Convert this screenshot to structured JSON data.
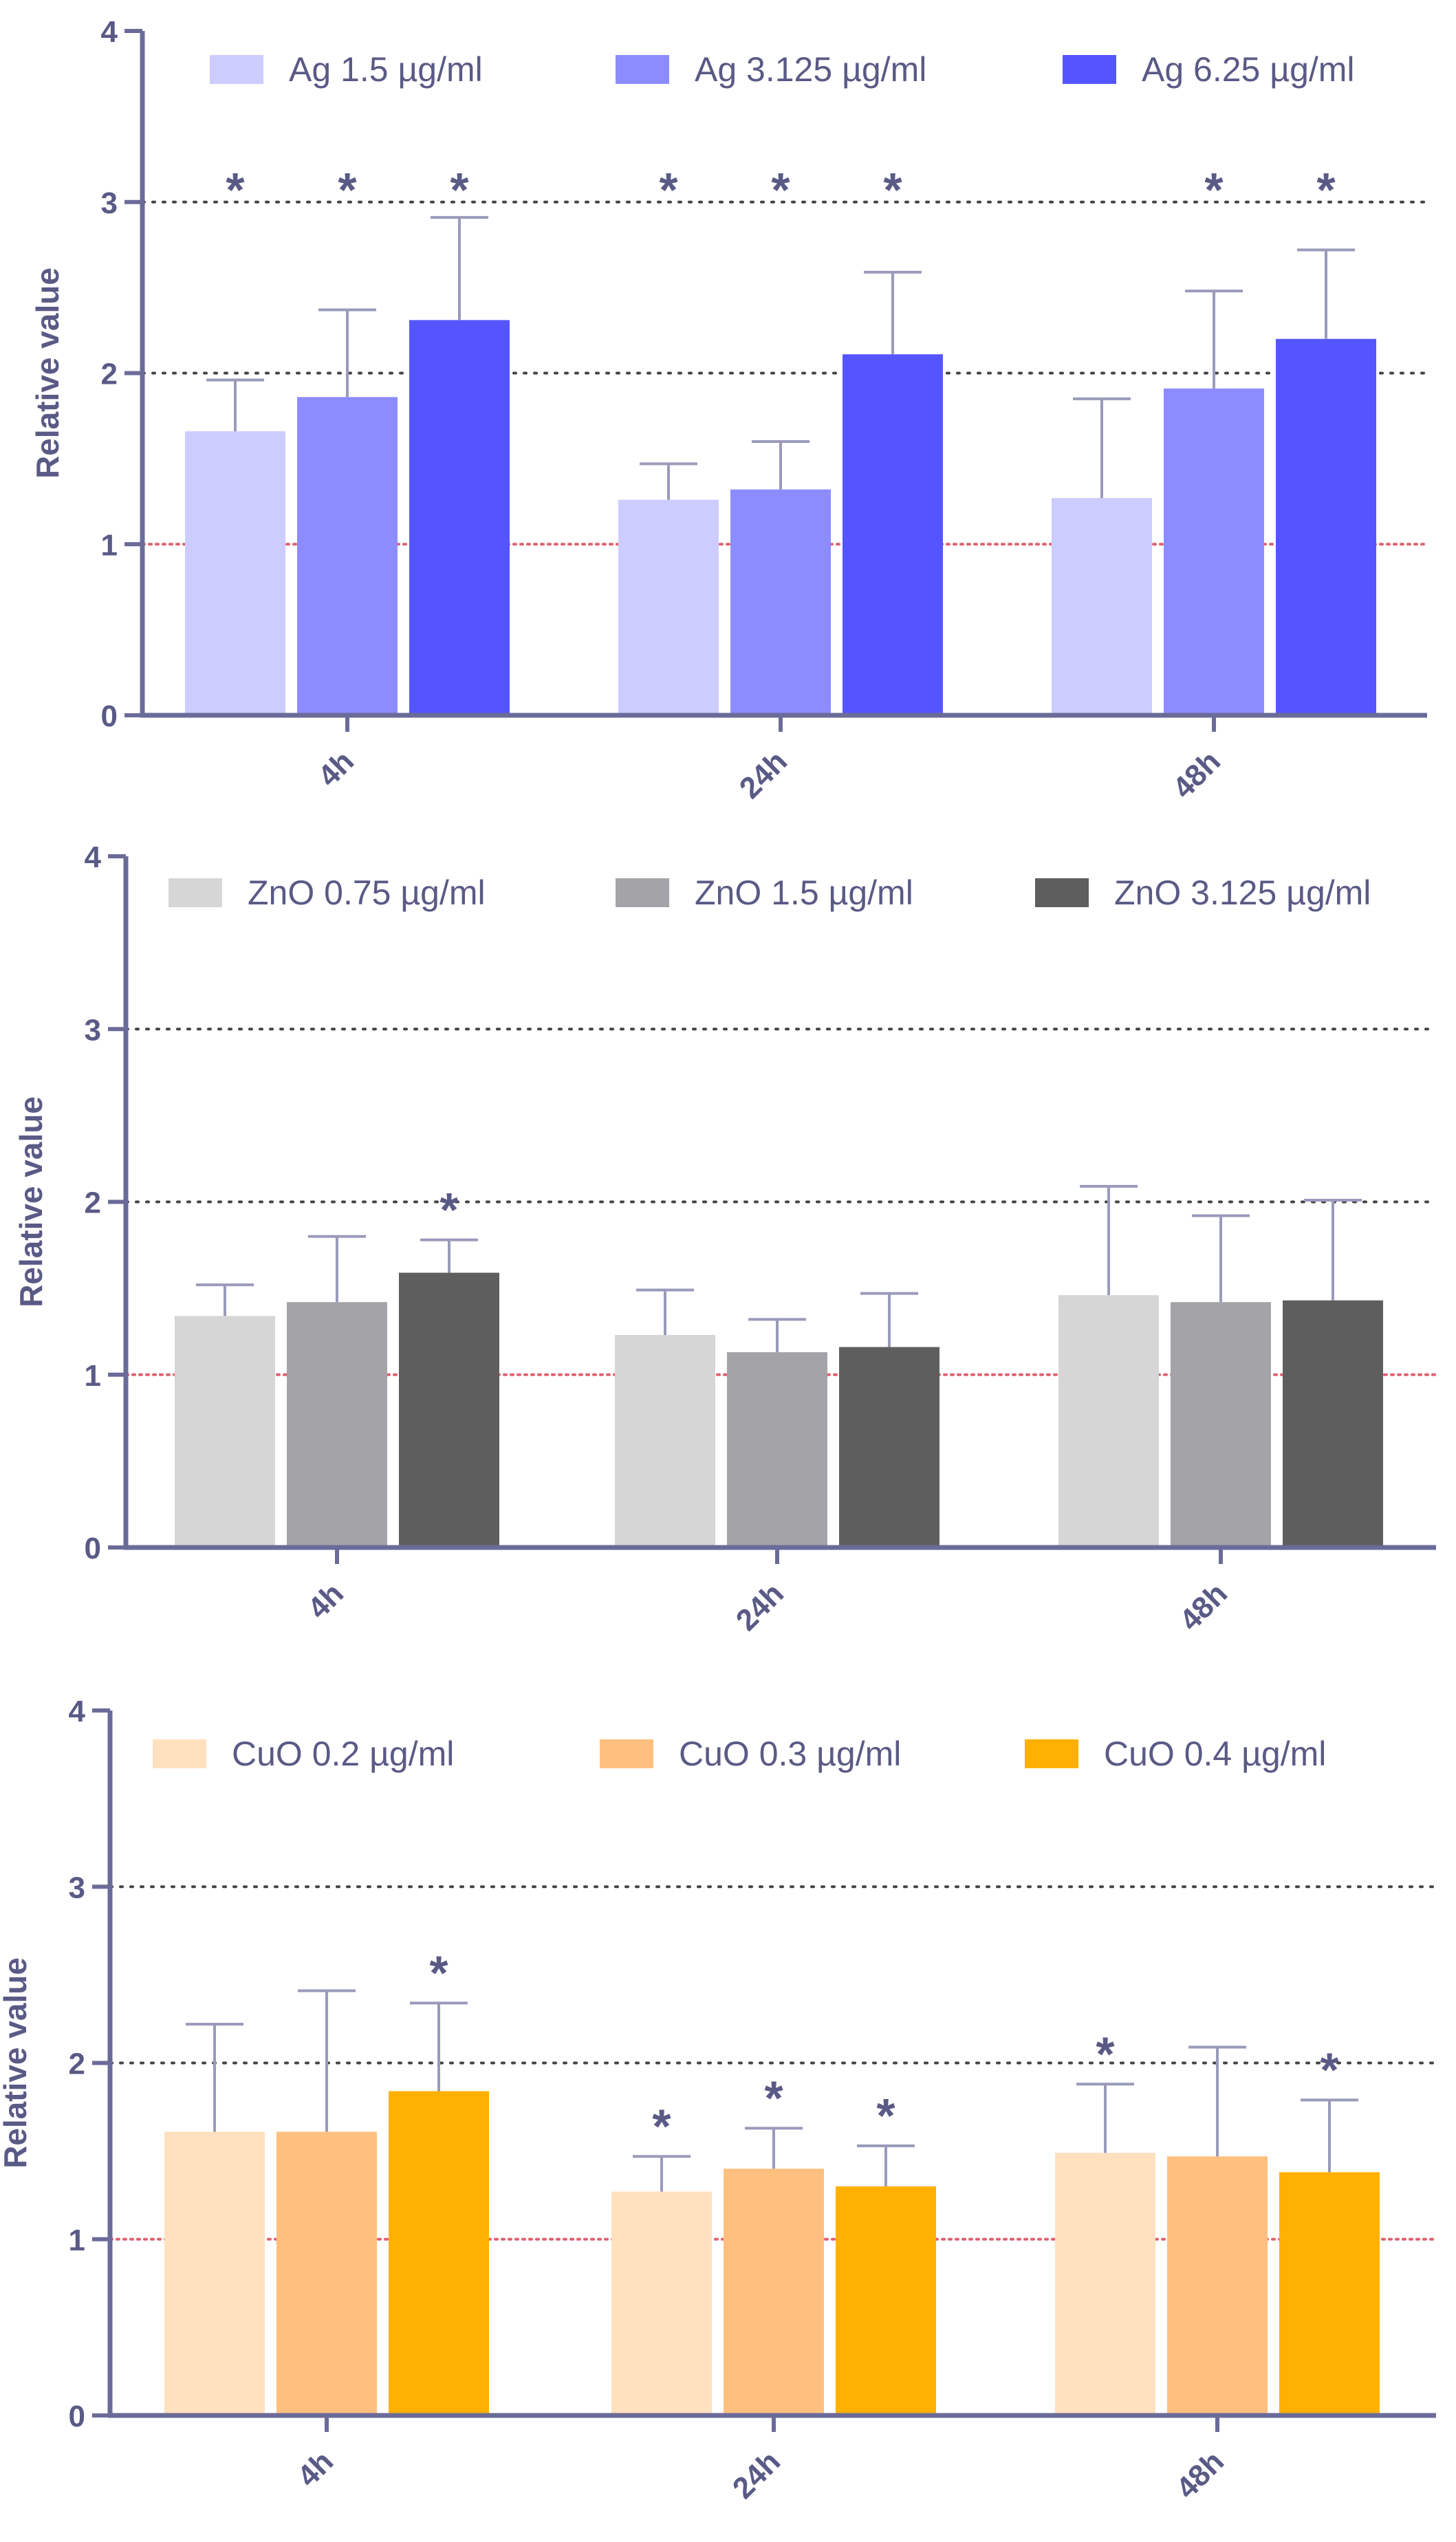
{
  "chart_data": [
    {
      "type": "bar",
      "title": "",
      "xlabel": "",
      "ylabel": "Relative value",
      "ylim": [
        0,
        4
      ],
      "yticks": [
        "0",
        "1",
        "2",
        "3",
        "4"
      ],
      "categories": [
        "4h",
        "24h",
        "48h"
      ],
      "reference_line": 1,
      "gridlines": [
        2,
        3
      ],
      "legend_position": "top",
      "significance_marker": "*",
      "series": [
        {
          "name": "Ag 1.5 µg/ml",
          "color": "#ccccff",
          "values": [
            1.66,
            1.26,
            1.27
          ],
          "errors": [
            0.3,
            0.21,
            0.58
          ],
          "significant": [
            true,
            true,
            false
          ]
        },
        {
          "name": "Ag 3.125 µg/ml",
          "color": "#8c8cff",
          "values": [
            1.86,
            1.32,
            1.91
          ],
          "errors": [
            0.51,
            0.28,
            0.57
          ],
          "significant": [
            true,
            true,
            true
          ]
        },
        {
          "name": "Ag 6.25 µg/ml",
          "color": "#5555ff",
          "values": [
            2.31,
            2.11,
            2.2
          ],
          "errors": [
            0.6,
            0.48,
            0.52
          ],
          "significant": [
            true,
            true,
            true
          ]
        }
      ]
    },
    {
      "type": "bar",
      "title": "",
      "xlabel": "",
      "ylabel": "Relative value",
      "ylim": [
        0,
        4
      ],
      "yticks": [
        "0",
        "1",
        "2",
        "3",
        "4"
      ],
      "categories": [
        "4h",
        "24h",
        "48h"
      ],
      "reference_line": 1,
      "gridlines": [
        2,
        3
      ],
      "legend_position": "top",
      "significance_marker": "*",
      "series": [
        {
          "name": "ZnO 0.75 µg/ml",
          "color": "#d6d6d6",
          "values": [
            1.34,
            1.23,
            1.46
          ],
          "errors": [
            0.18,
            0.26,
            0.63
          ],
          "significant": [
            false,
            false,
            false
          ]
        },
        {
          "name": "ZnO 1.5 µg/ml",
          "color": "#a3a3a8",
          "values": [
            1.42,
            1.13,
            1.42
          ],
          "errors": [
            0.38,
            0.19,
            0.5
          ],
          "significant": [
            false,
            false,
            false
          ]
        },
        {
          "name": "ZnO 3.125 µg/ml",
          "color": "#5e5e5e",
          "values": [
            1.59,
            1.16,
            1.43
          ],
          "errors": [
            0.19,
            0.31,
            0.58
          ],
          "significant": [
            true,
            false,
            false
          ]
        }
      ]
    },
    {
      "type": "bar",
      "title": "",
      "xlabel": "",
      "ylabel": "Relative value",
      "ylim": [
        0,
        4
      ],
      "yticks": [
        "0",
        "1",
        "2",
        "3",
        "4"
      ],
      "categories": [
        "4h",
        "24h",
        "48h"
      ],
      "reference_line": 1,
      "gridlines": [
        2,
        3
      ],
      "legend_position": "top",
      "significance_marker": "*",
      "series": [
        {
          "name": "CuO 0.2 µg/ml",
          "color": "#ffe0bf",
          "values": [
            1.61,
            1.27,
            1.49
          ],
          "errors": [
            0.61,
            0.2,
            0.39
          ],
          "significant": [
            false,
            true,
            true
          ]
        },
        {
          "name": "CuO 0.3 µg/ml",
          "color": "#ffbf7f",
          "values": [
            1.61,
            1.4,
            1.47
          ],
          "errors": [
            0.8,
            0.23,
            0.62
          ],
          "significant": [
            false,
            true,
            false
          ]
        },
        {
          "name": "CuO 0.4 µg/ml",
          "color": "#ffb000",
          "values": [
            1.84,
            1.3,
            1.38
          ],
          "errors": [
            0.5,
            0.23,
            0.41
          ],
          "significant": [
            true,
            true,
            true
          ]
        }
      ]
    }
  ],
  "style": {
    "axis_color": "#6b6b9a",
    "text_color": "#5a5a86",
    "error_bar_color": "#9a9aba",
    "gridline_color": "#444444",
    "reference_line_color": "#e06070"
  }
}
